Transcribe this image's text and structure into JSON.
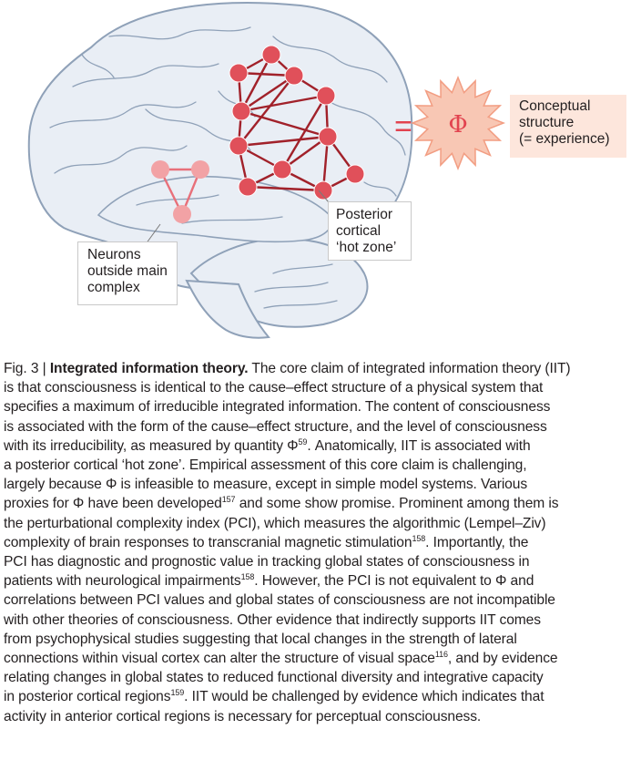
{
  "figure": {
    "phi_symbol": "Φ",
    "equals_sign": "=",
    "concept_label": [
      "Conceptual",
      "structure",
      "(= experience)"
    ],
    "posterior_label": [
      "Posterior",
      "cortical",
      "‘hot zone’"
    ],
    "neurons_label": [
      "Neurons",
      "outside main",
      "complex"
    ],
    "colors": {
      "brain_fill": "#e9eef5",
      "brain_outline": "#8fa1b8",
      "node_main": "#e0505a",
      "edge_main": "#a1212a",
      "node_outside": "#f2a2a5",
      "edge_outside": "#e8707a",
      "star_fill": "#f8c7b4",
      "star_stroke": "#f29d82",
      "phi_color": "#e2434f",
      "concept_bg": "#fde6dc"
    }
  },
  "caption": {
    "fig_label": "Fig. 3 |",
    "title": "Integrated information theory.",
    "lines": [
      [
        "The core claim of integrated information theory (IIT)"
      ],
      [
        "is that consciousness is identical to the cause–effect structure of a physical system that"
      ],
      [
        "specifies a maximum of irreducible integrated information. The content of consciousness"
      ],
      [
        "is associated with the form of the cause–effect structure, and the level of consciousness"
      ],
      [
        "with its irreducibility, as measured by quantity Φ",
        "59",
        ". Anatomically, IIT is associated with"
      ],
      [
        "a posterior cortical ‘hot zone’. Empirical assessment of this core claim is challenging,"
      ],
      [
        "largely because Φ is infeasible to measure, except in simple model systems. Various"
      ],
      [
        "proxies for Φ have been developed",
        "157",
        " and some show promise. Prominent among them is"
      ],
      [
        "the perturbational complexity index (PCI), which measures the algorithmic (Lempel–Ziv)"
      ],
      [
        "complexity of brain responses to transcranial magnetic stimulation",
        "158",
        ". Importantly, the"
      ],
      [
        "PCI has diagnostic and prognostic value in tracking global states of consciousness in"
      ],
      [
        "patients with neurological impairments",
        "158",
        ". However, the PCI is not equivalent to Φ and"
      ],
      [
        "correlations between PCI values and global states of consciousness are not incompatible"
      ],
      [
        "with other theories of consciousness. Other evidence that indirectly supports IIT comes"
      ],
      [
        "from psychophysical studies suggesting that local changes in the strength of lateral"
      ],
      [
        "connections within visual cortex can alter the structure of visual space",
        "116",
        ", and by evidence"
      ],
      [
        "relating changes in global states to reduced functional diversity and integrative capacity"
      ],
      [
        "in posterior cortical regions",
        "159",
        ". IIT would be challenged by evidence which indicates that"
      ],
      [
        "activity in anterior cortical regions is necessary for perceptual consciousness."
      ]
    ]
  }
}
